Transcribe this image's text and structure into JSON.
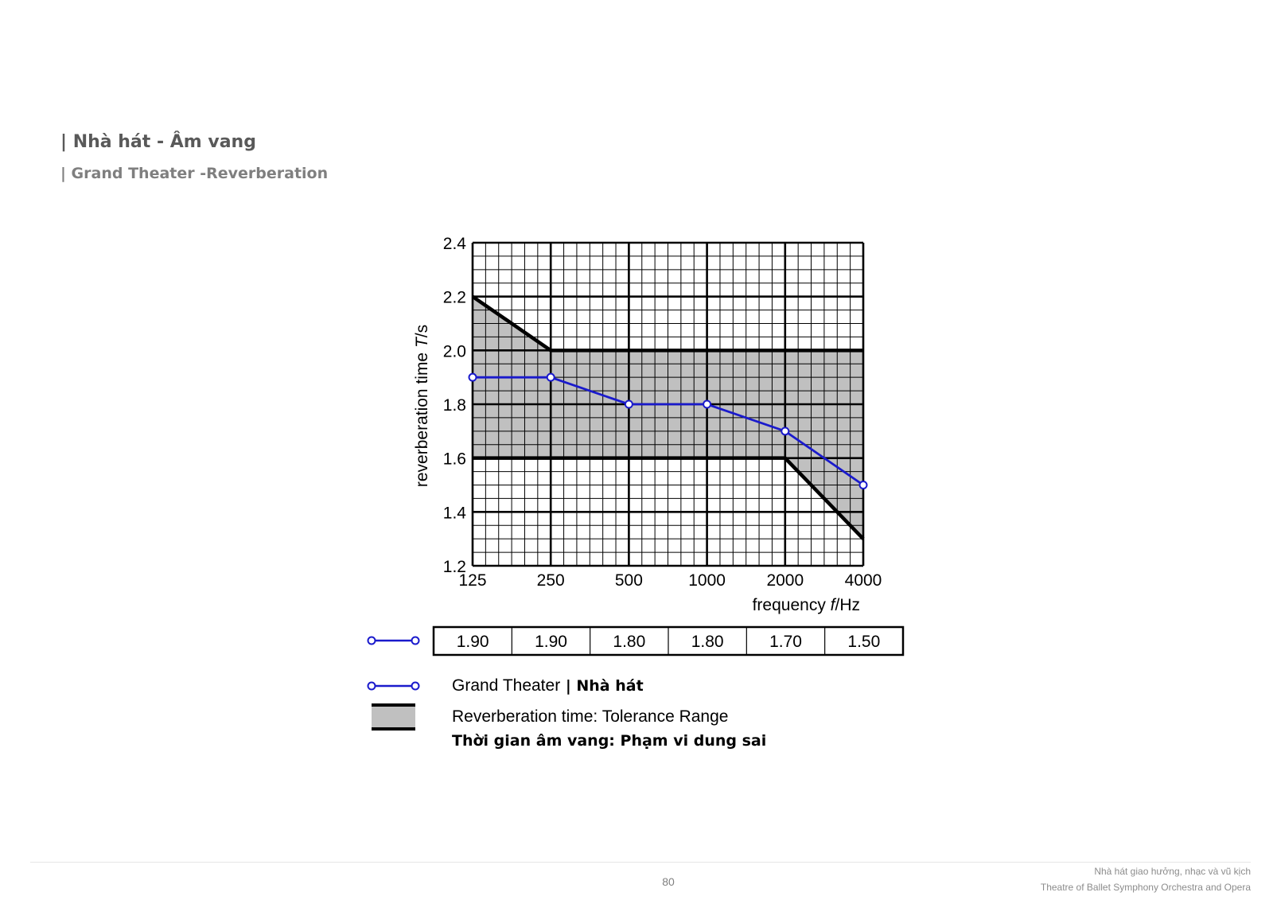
{
  "header": {
    "title_vn": "| Nhà hát - Âm vang",
    "title_en": "| Grand Theater -Reverberation"
  },
  "chart_data": {
    "type": "line",
    "xlabel_prefix": "frequency ",
    "xlabel_var": "f",
    "xlabel_unit": "/Hz",
    "ylabel_prefix": "reverberation time ",
    "ylabel_var": "T",
    "ylabel_unit": "/s",
    "x_scale": "log2",
    "x": [
      125,
      250,
      500,
      1000,
      2000,
      4000
    ],
    "x_tick_labels": [
      "125",
      "250",
      "500",
      "1000",
      "2000",
      "4000"
    ],
    "ylim": [
      1.2,
      2.4
    ],
    "y_ticks": [
      1.2,
      1.4,
      1.6,
      1.8,
      2.0,
      2.2,
      2.4
    ],
    "y_tick_labels": [
      "1.2",
      "1.4",
      "1.6",
      "1.8",
      "2.0",
      "2.2",
      "2.4"
    ],
    "grid": true,
    "series": [
      {
        "name": "Grand Theater",
        "color": "#1a1acc",
        "values": [
          1.9,
          1.9,
          1.8,
          1.8,
          1.7,
          1.5
        ]
      }
    ],
    "tolerance_range": {
      "x": [
        125,
        250,
        500,
        1000,
        2000,
        4000
      ],
      "upper": [
        2.2,
        2.0,
        2.0,
        2.0,
        2.0,
        2.0
      ],
      "lower": [
        1.6,
        1.6,
        1.6,
        1.6,
        1.6,
        1.3
      ],
      "fill": "#c0c0c0"
    },
    "value_table": [
      "1.90",
      "1.90",
      "1.80",
      "1.80",
      "1.70",
      "1.50"
    ],
    "legend": [
      {
        "label_en": "Grand Theater",
        "label_vn": "| Nhà hát"
      },
      {
        "label_en": "Reverberation time: Tolerance Range",
        "label_vn": "Thời gian âm vang: Phạm vi dung sai"
      }
    ]
  },
  "footer": {
    "page_number": "80",
    "org_vn": "Nhà hát giao hưởng, nhạc và vũ kịch",
    "org_en": "Theatre of Ballet Symphony Orchestra and Opera"
  }
}
